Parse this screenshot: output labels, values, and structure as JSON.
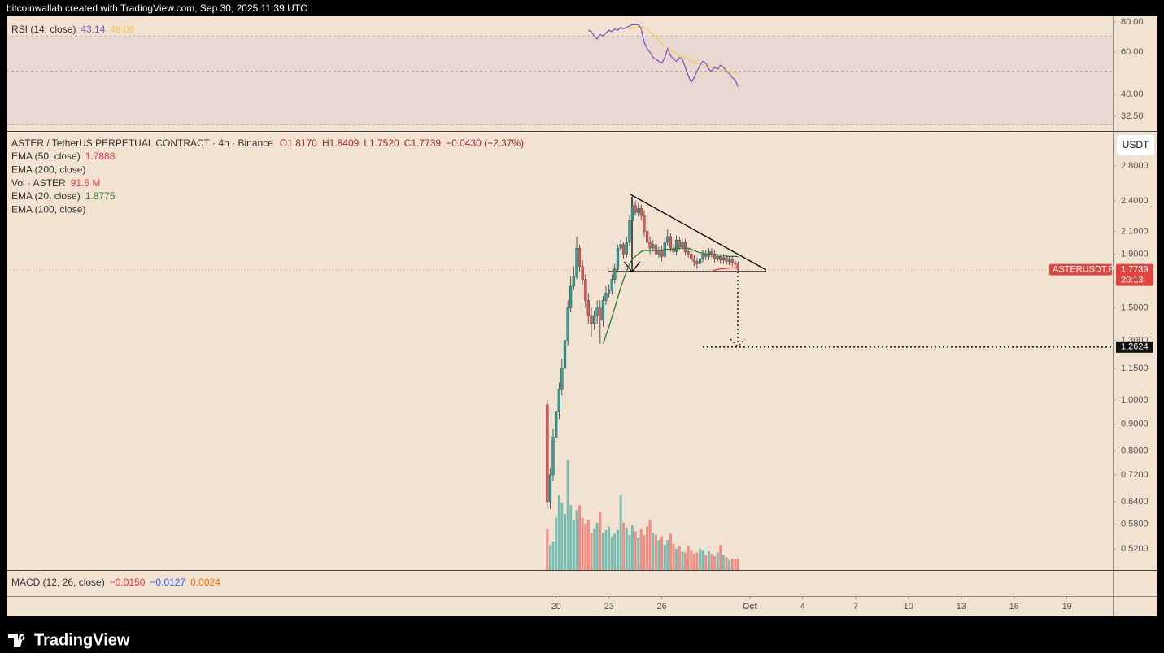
{
  "header": {
    "text": "bitcoinwallah created with TradingView.com, Sep 30, 2025 11:39 UTC"
  },
  "footer": {
    "brand": "TradingView"
  },
  "macd_legend": {
    "title": "MACD (12, 26, close)",
    "values": [
      {
        "text": "−0.0150",
        "color": "#f23645"
      },
      {
        "text": "−0.0127",
        "color": "#2962ff"
      },
      {
        "text": "0.0024",
        "color": "#ff6d00"
      }
    ]
  },
  "chart_data": [
    {
      "type": "candlestick",
      "title": "ASTER / TetherUS PERPETUAL CONTRACT · 4h · Binance",
      "ohlc_legend": [
        "O1.8170",
        "H1.8409",
        "L1.7520",
        "C1.7739"
      ],
      "change": "−0.0430 (−2.37%)",
      "currency": "USDT",
      "x": [
        19.5,
        19.67,
        19.83,
        20,
        20.17,
        20.33,
        20.5,
        20.67,
        20.83,
        21,
        21.17,
        21.33,
        21.5,
        21.67,
        21.83,
        22,
        22.17,
        22.33,
        22.5,
        22.67,
        22.83,
        23,
        23.17,
        23.33,
        23.5,
        23.67,
        23.83,
        24,
        24.17,
        24.33,
        24.5,
        24.67,
        24.83,
        25,
        25.17,
        25.33,
        25.5,
        25.67,
        25.83,
        26,
        26.17,
        26.33,
        26.5,
        26.67,
        26.83,
        27,
        27.17,
        27.33,
        27.5,
        27.67,
        27.83,
        28,
        28.17,
        28.33,
        28.5,
        28.67,
        28.83,
        29,
        29.17,
        29.33,
        29.5,
        29.67,
        29.83,
        30,
        30.17,
        30.33
      ],
      "open": [
        0.98,
        0.64,
        0.72,
        0.85,
        0.95,
        1.05,
        1.15,
        1.3,
        1.5,
        1.65,
        1.72,
        1.95,
        1.8,
        1.7,
        1.55,
        1.45,
        1.4,
        1.45,
        1.5,
        1.42,
        1.55,
        1.6,
        1.62,
        1.7,
        1.78,
        1.95,
        1.98,
        1.9,
        2.0,
        2.2,
        2.35,
        2.28,
        2.32,
        2.25,
        2.1,
        2.0,
        1.95,
        1.98,
        1.9,
        1.93,
        1.88,
        2.0,
        2.05,
        1.95,
        1.92,
        2.02,
        1.96,
        2.0,
        1.92,
        1.9,
        1.86,
        1.84,
        1.82,
        1.86,
        1.9,
        1.88,
        1.92,
        1.9,
        1.86,
        1.88,
        1.85,
        1.87,
        1.84,
        1.86,
        1.83,
        1.817
      ],
      "high": [
        1.0,
        0.74,
        0.88,
        0.98,
        1.08,
        1.2,
        1.35,
        1.55,
        1.72,
        1.8,
        2.05,
        1.98,
        1.85,
        1.74,
        1.6,
        1.5,
        1.48,
        1.55,
        1.55,
        1.58,
        1.65,
        1.66,
        1.74,
        1.82,
        1.98,
        2.02,
        2.0,
        2.05,
        2.25,
        2.45,
        2.4,
        2.38,
        2.36,
        2.3,
        2.15,
        2.05,
        2.02,
        2.02,
        1.96,
        1.97,
        2.04,
        2.12,
        2.08,
        1.98,
        2.06,
        2.05,
        2.03,
        2.03,
        1.95,
        1.93,
        1.89,
        1.87,
        1.89,
        1.93,
        1.93,
        1.95,
        1.95,
        1.93,
        1.9,
        1.9,
        1.9,
        1.89,
        1.88,
        1.88,
        1.85,
        1.8409
      ],
      "low": [
        0.62,
        0.62,
        0.7,
        0.83,
        0.92,
        1.02,
        1.12,
        1.27,
        1.47,
        1.62,
        1.7,
        1.76,
        1.66,
        1.5,
        1.4,
        1.32,
        1.36,
        1.4,
        1.28,
        1.38,
        1.52,
        1.57,
        1.59,
        1.67,
        1.75,
        1.92,
        1.86,
        1.87,
        1.97,
        2.16,
        2.25,
        2.24,
        2.2,
        2.05,
        1.96,
        1.9,
        1.92,
        1.86,
        1.87,
        1.84,
        1.85,
        1.97,
        1.92,
        1.89,
        1.89,
        1.93,
        1.93,
        1.89,
        1.87,
        1.83,
        1.8,
        1.78,
        1.79,
        1.83,
        1.85,
        1.85,
        1.87,
        1.83,
        1.84,
        1.82,
        1.82,
        1.81,
        1.81,
        1.8,
        1.79,
        1.752
      ],
      "close": [
        0.64,
        0.72,
        0.85,
        0.95,
        1.05,
        1.15,
        1.3,
        1.5,
        1.65,
        1.72,
        1.95,
        1.8,
        1.7,
        1.55,
        1.45,
        1.4,
        1.45,
        1.5,
        1.42,
        1.55,
        1.6,
        1.62,
        1.7,
        1.78,
        1.95,
        1.98,
        1.9,
        2.0,
        2.2,
        2.35,
        2.28,
        2.32,
        2.25,
        2.1,
        2.0,
        1.95,
        1.98,
        1.9,
        1.93,
        1.88,
        2.0,
        2.05,
        1.95,
        1.92,
        2.02,
        1.96,
        2.0,
        1.92,
        1.9,
        1.86,
        1.84,
        1.82,
        1.86,
        1.9,
        1.88,
        1.92,
        1.9,
        1.86,
        1.88,
        1.85,
        1.87,
        1.84,
        1.86,
        1.83,
        1.817,
        1.7739
      ],
      "up_color": "#26a69a",
      "down_color": "#ef5350",
      "volume": {
        "name": "Vol · ASTER",
        "value_label": "91.5 M",
        "color": "#f23645",
        "values": [
          330,
          200,
          230,
          420,
          600,
          540,
          450,
          880,
          520,
          400,
          480,
          520,
          420,
          370,
          400,
          300,
          330,
          380,
          470,
          300,
          320,
          350,
          270,
          290,
          320,
          600,
          380,
          340,
          280,
          360,
          310,
          260,
          330,
          280,
          350,
          400,
          300,
          280,
          240,
          270,
          200,
          240,
          290,
          210,
          170,
          190,
          150,
          140,
          190,
          160,
          130,
          140,
          170,
          160,
          120,
          150,
          130,
          110,
          140,
          200,
          120,
          100,
          80,
          90,
          85,
          91.5
        ]
      },
      "series": [
        {
          "name": "EMA (50, close)",
          "color": "#f23645",
          "value_label": "1.7888",
          "values": [
            null,
            null,
            null,
            null,
            null,
            null,
            null,
            null,
            null,
            null,
            null,
            null,
            null,
            null,
            null,
            null,
            null,
            null,
            null,
            null,
            null,
            null,
            null,
            null,
            null,
            null,
            null,
            null,
            null,
            null,
            null,
            null,
            null,
            null,
            null,
            null,
            null,
            null,
            null,
            null,
            null,
            null,
            null,
            null,
            null,
            null,
            null,
            null,
            null,
            null,
            null,
            null,
            null,
            null,
            null,
            null,
            1.76,
            1.77,
            1.775,
            1.78,
            1.782,
            1.784,
            1.786,
            1.787,
            1.788,
            1.7888
          ]
        },
        {
          "name": "EMA (200, close)"
        },
        {
          "name": "EMA (20, close)",
          "color": "#2e7d32",
          "value_label": "1.8775",
          "values": [
            null,
            null,
            null,
            null,
            null,
            null,
            null,
            null,
            null,
            null,
            null,
            null,
            null,
            null,
            null,
            null,
            null,
            null,
            null,
            1.28,
            1.33,
            1.38,
            1.44,
            1.5,
            1.57,
            1.64,
            1.7,
            1.76,
            1.82,
            1.86,
            1.88,
            1.9,
            1.92,
            1.93,
            1.93,
            1.93,
            1.93,
            1.93,
            1.93,
            1.93,
            1.94,
            1.94,
            1.94,
            1.94,
            1.95,
            1.95,
            1.95,
            1.95,
            1.95,
            1.94,
            1.93,
            1.92,
            1.91,
            1.91,
            1.9,
            1.9,
            1.9,
            1.9,
            1.89,
            1.89,
            1.89,
            1.88,
            1.88,
            1.88,
            1.88,
            1.8775
          ]
        },
        {
          "name": "EMA (100, close)"
        }
      ],
      "last_price_label": {
        "symbol": "ASTERUSDT.P",
        "price": "1.7739",
        "countdown": "20:13",
        "color": "#e0463f"
      },
      "target_price": 1.2624,
      "log_scale": true,
      "grid": false,
      "ylim": [
        0.474,
        3.24
      ],
      "yticks": [
        {
          "value": 2.8,
          "label": "2.8000"
        },
        {
          "value": 2.4,
          "label": "2.4000"
        },
        {
          "value": 2.1,
          "label": "2.1000"
        },
        {
          "value": 1.9,
          "label": "1.9000"
        },
        {
          "value": 1.5,
          "label": "1.5000"
        },
        {
          "value": 1.3,
          "label": "1.3000"
        },
        {
          "value": 1.15,
          "label": "1.1500"
        },
        {
          "value": 1.0,
          "label": "1.0000"
        },
        {
          "value": 0.9,
          "label": "0.9000"
        },
        {
          "value": 0.8,
          "label": "0.8000"
        },
        {
          "value": 0.72,
          "label": "0.7200"
        },
        {
          "value": 0.64,
          "label": "0.6400"
        },
        {
          "value": 0.58,
          "label": "0.5800"
        },
        {
          "value": 0.52,
          "label": "0.5200"
        }
      ],
      "xlim": [
        -11.2,
        51.6
      ],
      "xticks": [
        20,
        23,
        26,
        {
          "value": 31,
          "label": "Oct"
        },
        {
          "value": 34,
          "label": "4"
        },
        {
          "value": 37,
          "label": "7"
        },
        {
          "value": 40,
          "label": "10"
        },
        {
          "value": 43,
          "label": "13"
        },
        {
          "value": 46,
          "label": "16"
        },
        {
          "value": 49,
          "label": "19"
        }
      ]
    },
    {
      "type": "line",
      "title": "RSI (14, close)",
      "log_scale": true,
      "series": [
        {
          "color": "#7e57c2",
          "value_label": "43.14",
          "values": [
            null,
            null,
            null,
            null,
            null,
            null,
            null,
            null,
            null,
            null,
            null,
            null,
            null,
            null,
            74,
            73,
            70,
            68,
            71,
            70,
            72,
            74,
            73,
            75,
            74,
            76,
            75,
            76,
            77,
            78,
            78,
            78,
            75,
            66,
            62,
            60,
            57,
            56,
            55,
            54,
            57,
            62,
            58,
            56,
            55,
            57,
            56,
            52,
            48,
            45,
            47,
            50,
            53,
            55,
            54,
            51,
            50,
            52,
            51,
            53,
            52,
            50,
            49,
            47,
            46,
            43.14
          ]
        },
        {
          "color": "#f7c948",
          "value_label": "49.06",
          "values": [
            null,
            null,
            null,
            null,
            null,
            null,
            null,
            null,
            null,
            null,
            null,
            null,
            null,
            null,
            null,
            null,
            null,
            null,
            null,
            null,
            null,
            null,
            null,
            null,
            null,
            null,
            null,
            null,
            75,
            75.5,
            76,
            76.5,
            76.5,
            76,
            75,
            73,
            71,
            69,
            67,
            65,
            63.5,
            62,
            61,
            60,
            59,
            58,
            57.5,
            57,
            56,
            55,
            54.5,
            54,
            53.5,
            53,
            52.5,
            52,
            52,
            51.5,
            51,
            51,
            50.5,
            50,
            50,
            49.5,
            49.2,
            49.06
          ]
        }
      ],
      "levels": [
        70,
        50,
        30
      ],
      "ylim": [
        28.5,
        84.5
      ],
      "yticks": [
        {
          "value": 80,
          "label": "80.00"
        },
        {
          "value": 60,
          "label": "60.00"
        },
        {
          "value": 40,
          "label": "40.00"
        },
        {
          "value": 32.5,
          "label": "32.50"
        }
      ]
    }
  ]
}
